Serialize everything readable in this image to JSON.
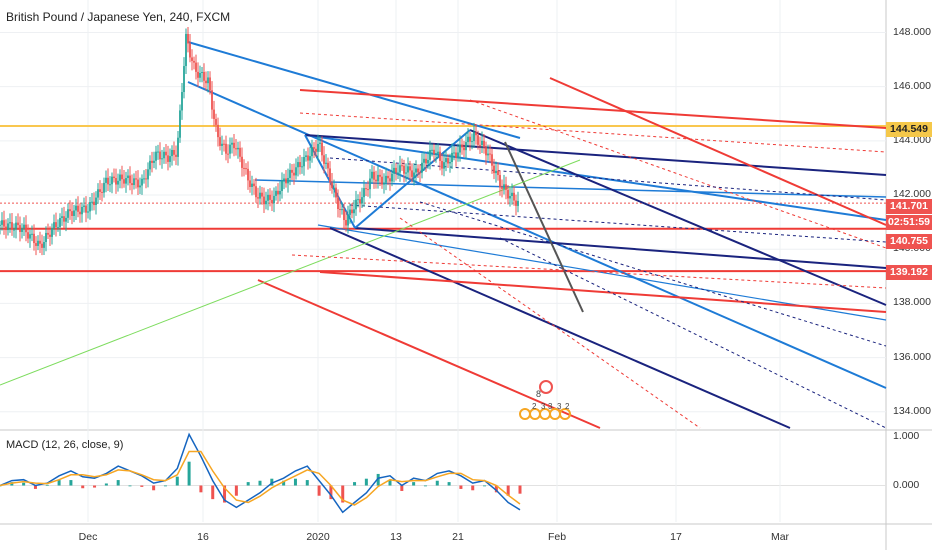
{
  "title": "British Pound / Japanese Yen, 240, FXCM",
  "macd_label": "MACD (12, 26, close, 9)",
  "chart_data": [
    {
      "type": "candlestick",
      "title": "British Pound / Japanese Yen, 240, FXCM",
      "y_axis_ticks": [
        "148.000",
        "146.000",
        "144.000",
        "142.000",
        "140.000",
        "138.000",
        "136.000",
        "134.000"
      ],
      "x_axis_ticks": [
        "Dec",
        "16",
        "2020",
        "13",
        "21",
        "Feb",
        "17",
        "Mar"
      ],
      "ylim": [
        133.4,
        149.2
      ],
      "grid": true,
      "price_labels": [
        {
          "value": "144.549",
          "color": "#f5c84a",
          "text_color": "#222222"
        },
        {
          "value": "141.701",
          "color": "#ef5350",
          "text_color": "#ffffff"
        },
        {
          "value": "02:51:59",
          "color": "#ef5350",
          "text_color": "#ffffff"
        },
        {
          "value": "140.755",
          "color": "#ef5350",
          "text_color": "#ffffff"
        },
        {
          "value": "139.192",
          "color": "#ef5350",
          "text_color": "#ffffff"
        }
      ],
      "horizontal_levels": [
        {
          "value": 144.549,
          "color": "#f9c74f"
        },
        {
          "value": 140.755,
          "color": "#ef3b36"
        },
        {
          "value": 139.192,
          "color": "#ef3b36"
        }
      ],
      "price_path": [
        [
          0,
          140.9
        ],
        [
          0.025,
          140.8
        ],
        [
          0.045,
          140.1
        ],
        [
          0.06,
          140.8
        ],
        [
          0.08,
          141.4
        ],
        [
          0.1,
          141.5
        ],
        [
          0.12,
          142.5
        ],
        [
          0.14,
          142.6
        ],
        [
          0.16,
          142.4
        ],
        [
          0.175,
          143.5
        ],
        [
          0.19,
          143.4
        ],
        [
          0.2,
          143.6
        ],
        [
          0.21,
          147.8
        ],
        [
          0.22,
          146.6
        ],
        [
          0.235,
          146.2
        ],
        [
          0.245,
          144.2
        ],
        [
          0.255,
          143.6
        ],
        [
          0.265,
          143.9
        ],
        [
          0.28,
          142.6
        ],
        [
          0.29,
          142.0
        ],
        [
          0.3,
          141.8
        ],
        [
          0.31,
          141.9
        ],
        [
          0.32,
          142.5
        ],
        [
          0.335,
          143.0
        ],
        [
          0.35,
          143.5
        ],
        [
          0.36,
          143.9
        ],
        [
          0.37,
          142.9
        ],
        [
          0.38,
          141.8
        ],
        [
          0.39,
          141.0
        ],
        [
          0.4,
          141.6
        ],
        [
          0.41,
          142.0
        ],
        [
          0.42,
          142.7
        ],
        [
          0.435,
          142.5
        ],
        [
          0.45,
          143.0
        ],
        [
          0.47,
          142.8
        ],
        [
          0.49,
          143.7
        ],
        [
          0.5,
          143.1
        ],
        [
          0.52,
          143.7
        ],
        [
          0.535,
          144.2
        ],
        [
          0.55,
          143.6
        ],
        [
          0.565,
          142.4
        ],
        [
          0.575,
          142.0
        ],
        [
          0.585,
          141.7
        ]
      ]
    },
    {
      "type": "line",
      "title": "MACD (12, 26, close, 9)",
      "y_axis_ticks": [
        "1.000",
        "0.000"
      ],
      "ylim": [
        -0.75,
        1.1
      ],
      "series": [
        {
          "values": [
            0.0,
            0.1,
            0.12,
            0.0,
            0.05,
            0.2,
            0.3,
            0.18,
            0.15,
            0.25,
            0.4,
            0.3,
            0.2,
            0.05,
            0.1,
            0.35,
            1.05,
            0.6,
            0.1,
            -0.3,
            -0.45,
            -0.3,
            -0.15,
            0.05,
            0.15,
            0.3,
            0.4,
            0.1,
            -0.2,
            -0.55,
            -0.35,
            -0.15,
            0.15,
            0.2,
            0.0,
            0.15,
            0.1,
            0.25,
            0.3,
            0.2,
            0.05,
            0.1,
            -0.1,
            -0.35,
            -0.5
          ],
          "color": "#1565c0"
        },
        {
          "values": [
            0.0,
            0.05,
            0.08,
            0.05,
            0.04,
            0.12,
            0.22,
            0.22,
            0.18,
            0.22,
            0.32,
            0.3,
            0.22,
            0.12,
            0.1,
            0.22,
            0.7,
            0.7,
            0.3,
            -0.05,
            -0.3,
            -0.35,
            -0.22,
            -0.05,
            0.08,
            0.2,
            0.32,
            0.25,
            0.0,
            -0.3,
            -0.4,
            -0.25,
            -0.02,
            0.12,
            0.08,
            0.1,
            0.1,
            0.18,
            0.25,
            0.25,
            0.12,
            0.1,
            0.0,
            -0.2,
            -0.38
          ],
          "color": "#f6a623"
        }
      ]
    }
  ],
  "annotation_labels": [
    "8",
    "2",
    "3",
    "3",
    "3",
    "2"
  ]
}
